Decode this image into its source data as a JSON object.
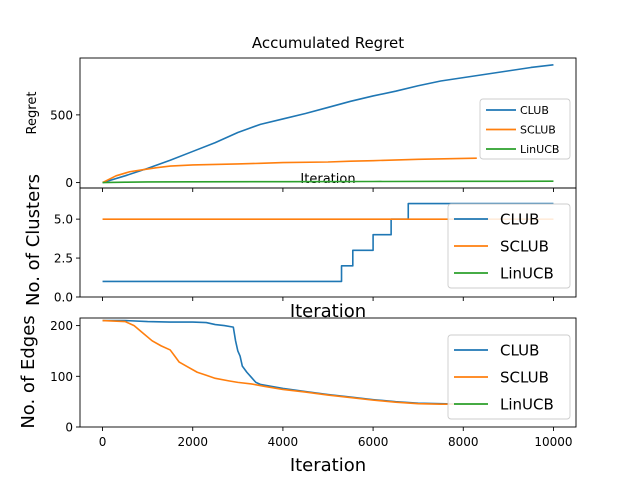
{
  "chart_data": [
    {
      "type": "line",
      "title": "Accumulated Regret",
      "xlabel": "Iteration",
      "ylabel": "Regret",
      "xlim": [
        -500,
        10500
      ],
      "ylim": [
        -40,
        920
      ],
      "yticks": [
        0,
        500
      ],
      "ytick_labels": [
        "0",
        "500"
      ],
      "show_x_tick_labels": false,
      "legend_position": "lower-right",
      "legend_size": "small",
      "series": [
        {
          "name": "CLUB",
          "color": "#1f77b4",
          "x": [
            0,
            500,
            1000,
            1500,
            2000,
            2500,
            3000,
            3500,
            4000,
            4500,
            5000,
            5500,
            6000,
            6500,
            7000,
            7500,
            8000,
            8500,
            9000,
            9500,
            10000
          ],
          "y": [
            0,
            50,
            105,
            165,
            230,
            295,
            370,
            430,
            470,
            510,
            555,
            600,
            640,
            675,
            715,
            750,
            775,
            800,
            825,
            850,
            870
          ]
        },
        {
          "name": "SCLUB",
          "color": "#ff7f0e",
          "x": [
            0,
            300,
            600,
            900,
            1200,
            1500,
            2000,
            3000,
            3500,
            4000,
            5000,
            5500,
            6000,
            7000,
            8000,
            8300
          ],
          "y": [
            0,
            50,
            80,
            95,
            110,
            122,
            130,
            138,
            142,
            148,
            152,
            158,
            162,
            172,
            178,
            180
          ]
        },
        {
          "name": "LinUCB",
          "color": "#2ca02c",
          "x": [
            0,
            500,
            1000,
            2000,
            4000,
            6000,
            8000,
            10000
          ],
          "y": [
            0,
            3,
            5,
            6,
            7,
            8,
            9,
            10
          ]
        }
      ]
    },
    {
      "type": "line",
      "title": "",
      "xlabel": "Iteration",
      "ylabel": "No. of Clusters",
      "xlim": [
        -500,
        10500
      ],
      "ylim": [
        0,
        7
      ],
      "yticks": [
        0,
        2.5,
        5
      ],
      "ytick_labels": [
        "0.0",
        "2.5",
        "5.0"
      ],
      "show_x_tick_labels": false,
      "legend_position": "right",
      "legend_size": "large",
      "series": [
        {
          "name": "CLUB",
          "color": "#1f77b4",
          "x": [
            0,
            5300,
            5300,
            5550,
            5550,
            6000,
            6000,
            6400,
            6400,
            6780,
            6780,
            10000
          ],
          "y": [
            1,
            1,
            2,
            2,
            3,
            3,
            4,
            4,
            5,
            5,
            6,
            6
          ]
        },
        {
          "name": "SCLUB",
          "color": "#ff7f0e",
          "x": [
            0,
            10000
          ],
          "y": [
            5,
            5
          ]
        },
        {
          "name": "LinUCB",
          "color": "#2ca02c",
          "x": [],
          "y": []
        }
      ]
    },
    {
      "type": "line",
      "title": "",
      "xlabel": "Iteration",
      "ylabel": "No. of Edges",
      "xlim": [
        -500,
        10500
      ],
      "ylim": [
        0,
        215
      ],
      "yticks": [
        0,
        100,
        200
      ],
      "ytick_labels": [
        "0",
        "100",
        "200"
      ],
      "xticks": [
        0,
        2000,
        4000,
        6000,
        8000,
        10000
      ],
      "xtick_labels": [
        "0",
        "2000",
        "4000",
        "6000",
        "8000",
        "10000"
      ],
      "show_x_tick_labels": true,
      "legend_position": "right",
      "legend_size": "large",
      "series": [
        {
          "name": "CLUB",
          "color": "#1f77b4",
          "x": [
            0,
            500,
            1000,
            1500,
            2000,
            2300,
            2500,
            2700,
            2900,
            2950,
            3000,
            3050,
            3100,
            3200,
            3300,
            3400,
            3500,
            4000,
            4500,
            5000,
            5500,
            6000,
            6500,
            7000,
            7500,
            8000,
            8500
          ],
          "y": [
            210,
            210,
            208,
            207,
            207,
            206,
            202,
            200,
            197,
            170,
            150,
            140,
            120,
            108,
            98,
            88,
            84,
            76,
            70,
            64,
            59,
            54,
            50,
            47,
            46,
            45,
            45
          ]
        },
        {
          "name": "SCLUB",
          "color": "#ff7f0e",
          "x": [
            0,
            500,
            700,
            900,
            1100,
            1300,
            1500,
            1600,
            1700,
            1900,
            2100,
            2300,
            2500,
            2800,
            3000,
            3300,
            3600,
            4000,
            4500,
            5000,
            5500,
            6000,
            6500,
            7000,
            7500,
            8000,
            8500
          ],
          "y": [
            210,
            208,
            200,
            185,
            170,
            160,
            152,
            140,
            128,
            118,
            108,
            102,
            96,
            91,
            88,
            85,
            80,
            74,
            69,
            63,
            58,
            53,
            49,
            46,
            45,
            45,
            45
          ]
        },
        {
          "name": "LinUCB",
          "color": "#2ca02c",
          "x": [],
          "y": []
        }
      ]
    }
  ]
}
